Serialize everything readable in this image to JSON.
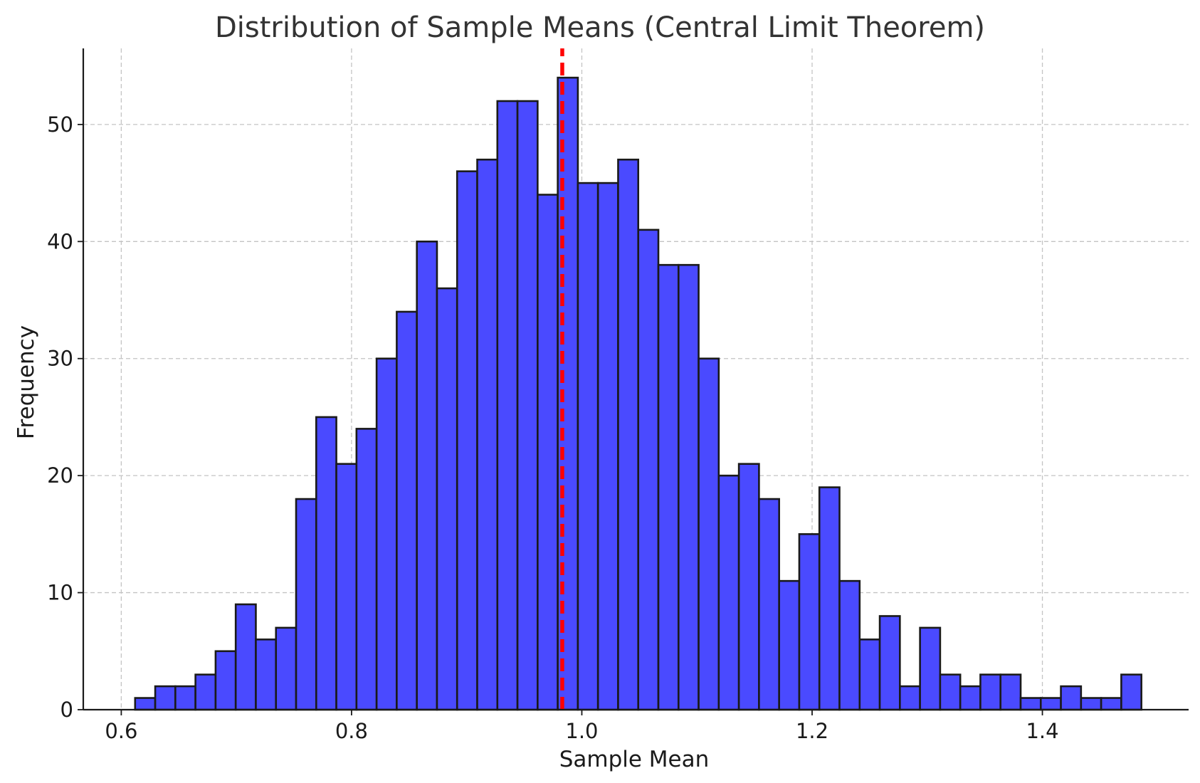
{
  "chart_data": {
    "type": "bar",
    "title": "Distribution of Sample Means (Central Limit Theorem)",
    "xlabel": "Sample Mean",
    "ylabel": "Frequency",
    "xlim": [
      0.567,
      1.527
    ],
    "ylim": [
      0,
      56.5
    ],
    "xticks": [
      0.6,
      0.8,
      1.0,
      1.2,
      1.4
    ],
    "xtick_labels": [
      "0.6",
      "0.8",
      "1.0",
      "1.2",
      "1.4"
    ],
    "yticks": [
      0,
      10,
      20,
      30,
      40,
      50
    ],
    "ytick_labels": [
      "0",
      "10",
      "20",
      "30",
      "40",
      "50"
    ],
    "grid": true,
    "bin_start": 0.612,
    "bin_width": 0.01748,
    "values": [
      1,
      2,
      2,
      3,
      5,
      9,
      6,
      7,
      18,
      25,
      21,
      24,
      30,
      34,
      40,
      36,
      46,
      47,
      52,
      52,
      44,
      54,
      45,
      45,
      47,
      41,
      38,
      38,
      30,
      20,
      21,
      18,
      11,
      15,
      19,
      11,
      6,
      8,
      2,
      7,
      3,
      2,
      3,
      3,
      1,
      1,
      2,
      1,
      1,
      3
    ],
    "mean_line": 0.983,
    "colors": {
      "bar_fill": "#4a4aff",
      "bar_edge": "#1a1a1a",
      "mean_line": "#ff0000"
    }
  }
}
